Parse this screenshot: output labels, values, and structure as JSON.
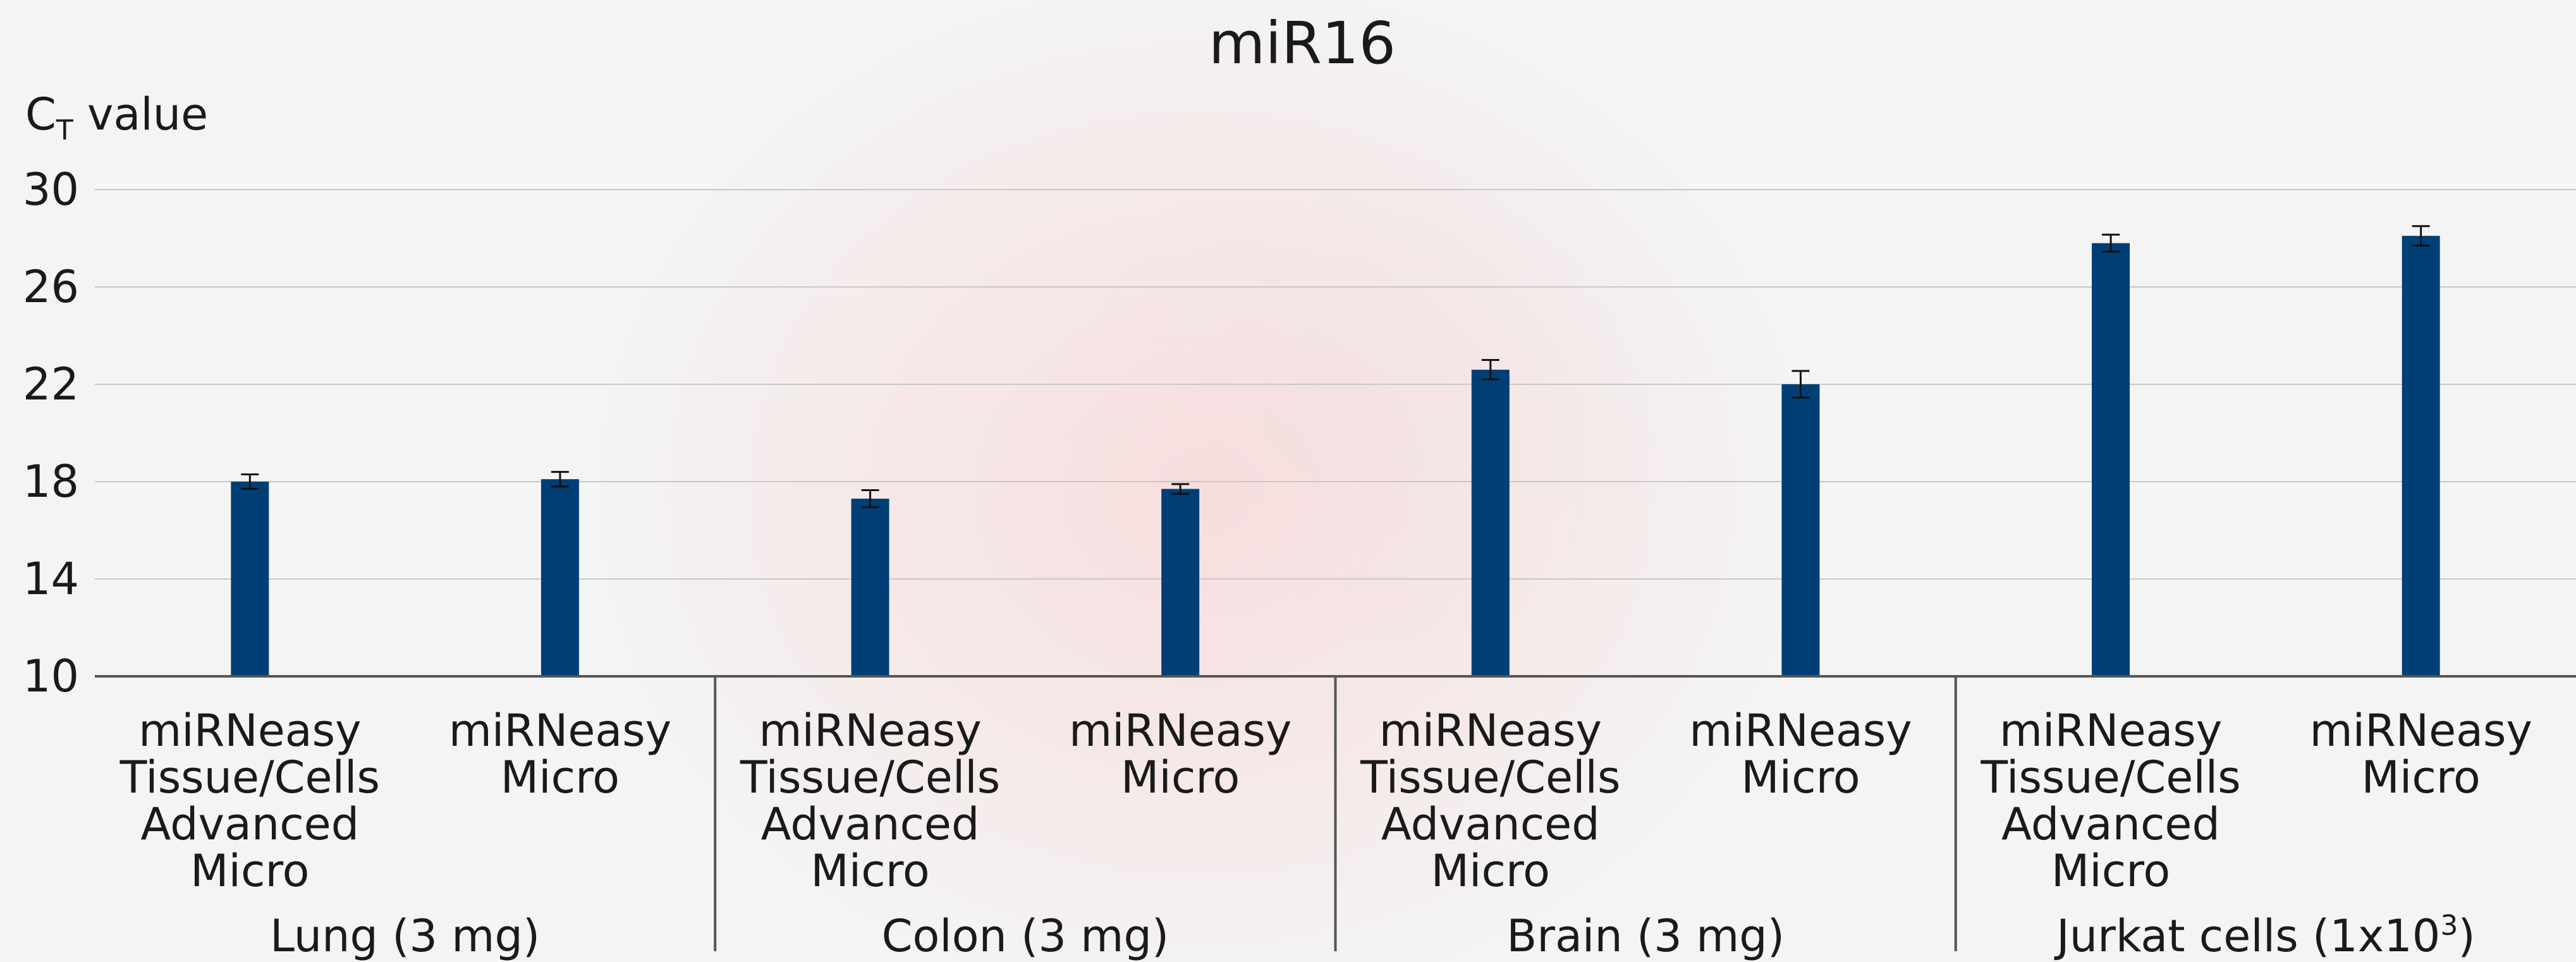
{
  "chart_data": {
    "type": "bar",
    "title": "miR16",
    "ylabel_main": "C",
    "ylabel_sub": "T",
    "ylabel_rest": " value",
    "ylim": [
      10,
      30
    ],
    "yticks": [
      10,
      14,
      18,
      22,
      26,
      30
    ],
    "grid": true,
    "bar_color": "#003f75",
    "groups": [
      {
        "label": "Lung (3 mg)",
        "bars": [
          {
            "label": [
              "miRNeasy",
              "Tissue/Cells",
              "Advanced",
              "Micro"
            ],
            "value": 18.0,
            "error": 0.3
          },
          {
            "label": [
              "miRNeasy",
              "Micro"
            ],
            "value": 18.1,
            "error": 0.3
          }
        ]
      },
      {
        "label": "Colon (3 mg)",
        "bars": [
          {
            "label": [
              "miRNeasy",
              "Tissue/Cells",
              "Advanced",
              "Micro"
            ],
            "value": 17.3,
            "error": 0.35
          },
          {
            "label": [
              "miRNeasy",
              "Micro"
            ],
            "value": 17.7,
            "error": 0.2
          }
        ]
      },
      {
        "label": "Brain (3 mg)",
        "bars": [
          {
            "label": [
              "miRNeasy",
              "Tissue/Cells",
              "Advanced",
              "Micro"
            ],
            "value": 22.6,
            "error": 0.4
          },
          {
            "label": [
              "miRNeasy",
              "Micro"
            ],
            "value": 22.0,
            "error": 0.55
          }
        ]
      },
      {
        "label_main": "Jurkat cells (1x10",
        "label_sup": "3",
        "label_end": ")",
        "bars": [
          {
            "label": [
              "miRNeasy",
              "Tissue/Cells",
              "Advanced",
              "Micro"
            ],
            "value": 27.8,
            "error": 0.35
          },
          {
            "label": [
              "miRNeasy",
              "Micro"
            ],
            "value": 28.1,
            "error": 0.4
          }
        ]
      }
    ]
  }
}
